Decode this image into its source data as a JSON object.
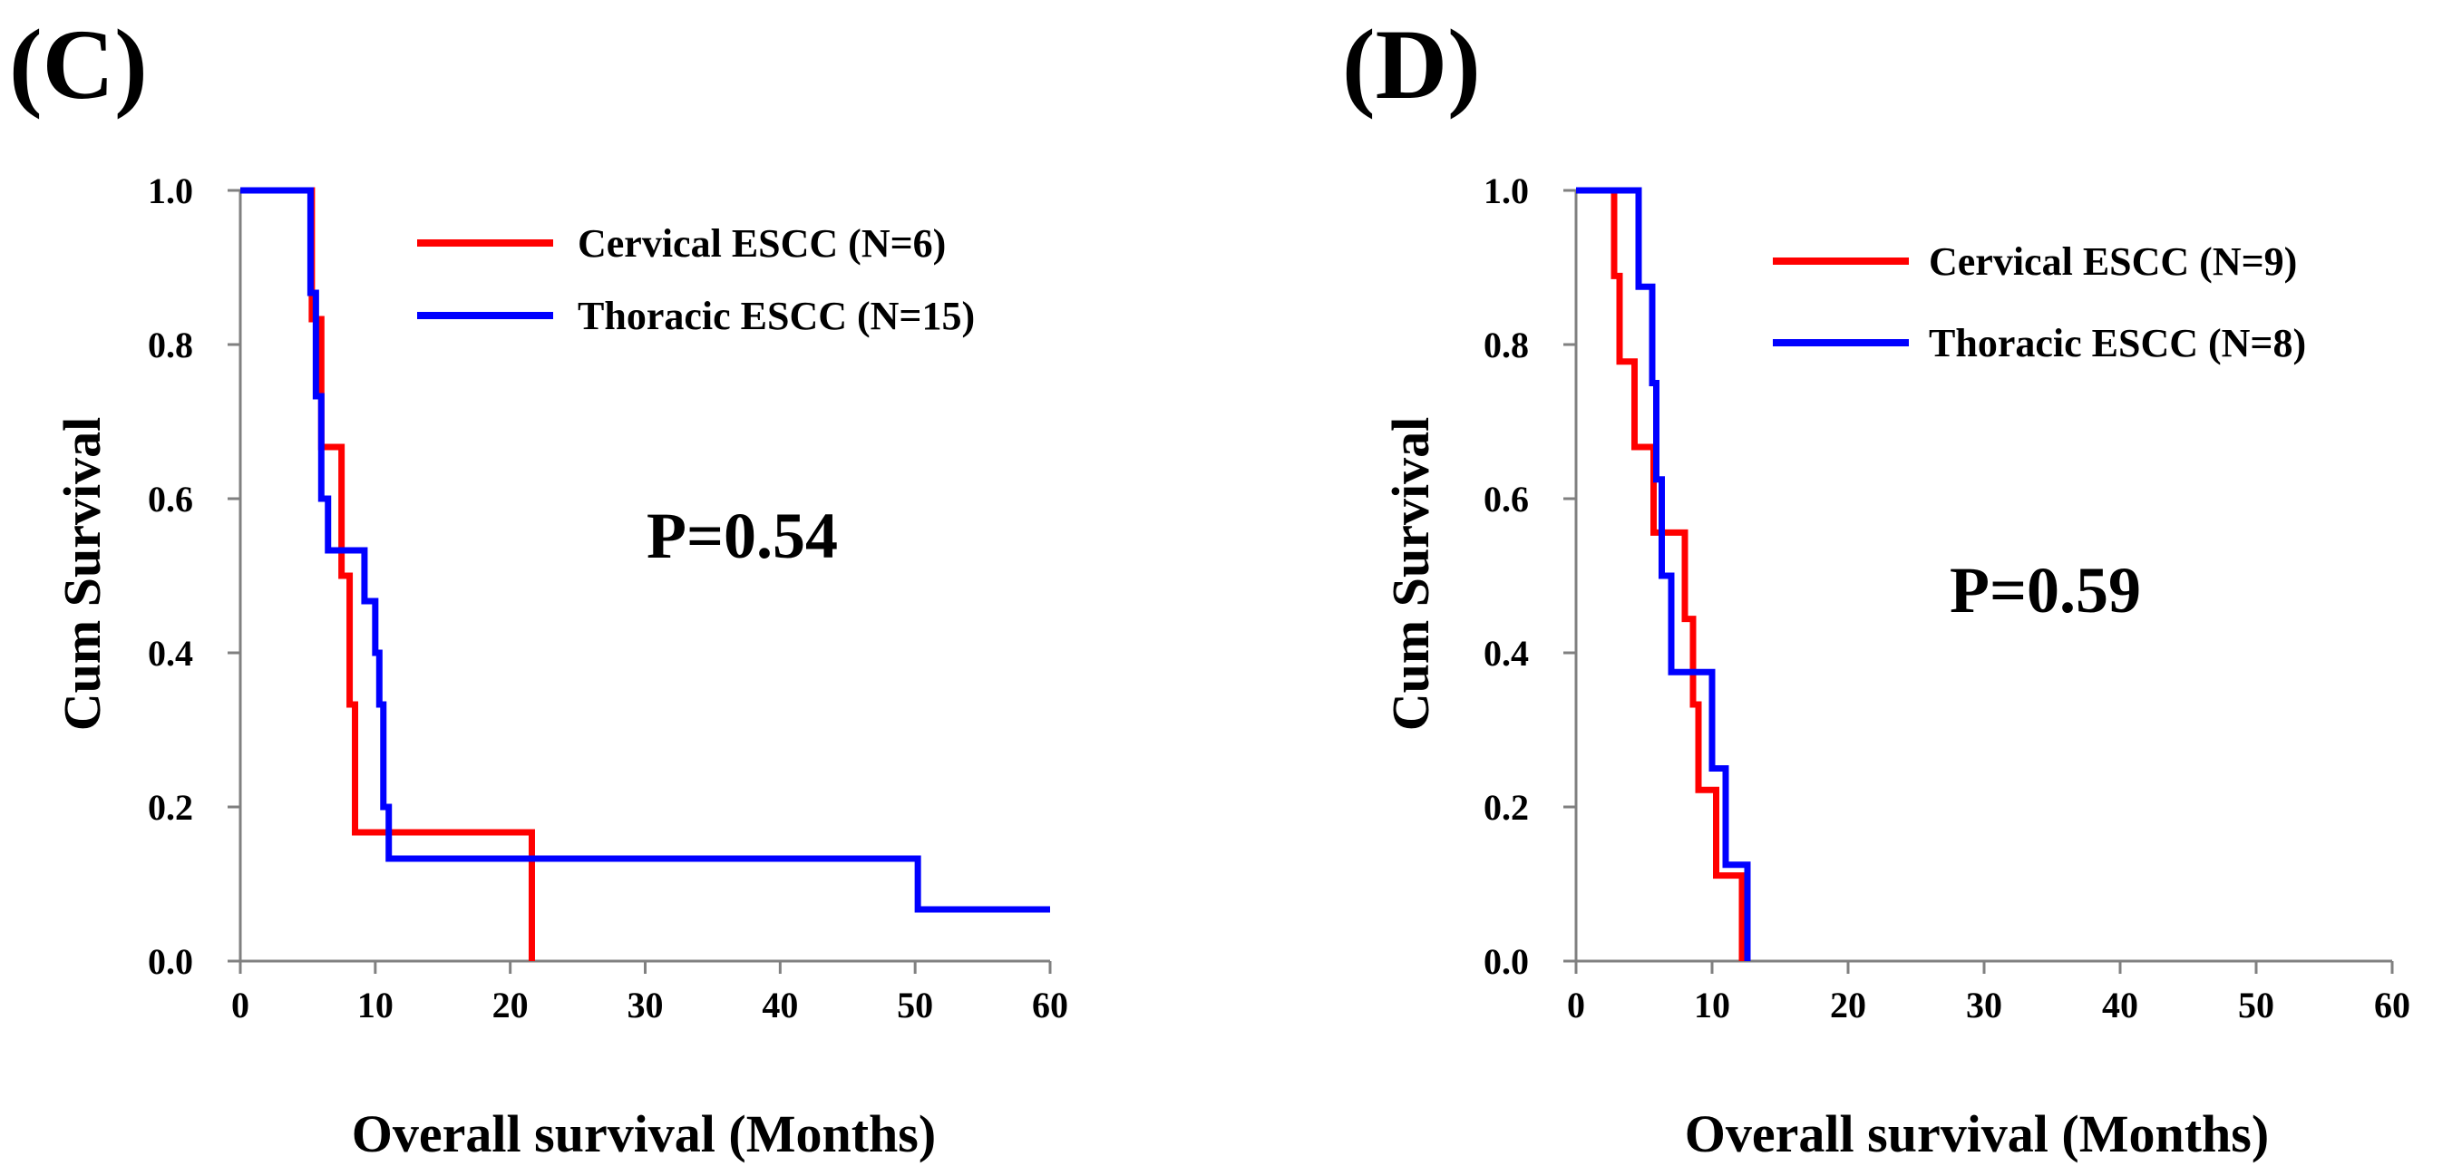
{
  "chart_data": [
    {
      "type": "line",
      "subtype": "kaplan-meier",
      "panel_label": "(C)",
      "xlabel": "Overall survival (Months)",
      "ylabel": "Cum Survival",
      "xlim": [
        0,
        60
      ],
      "ylim": [
        0,
        1.0
      ],
      "xticks": [
        0,
        10,
        20,
        30,
        40,
        50,
        60
      ],
      "xtick_labels": [
        "0",
        "10",
        "20",
        "30",
        "40",
        "50",
        "60"
      ],
      "yticks": [
        0,
        0.2,
        0.4,
        0.6,
        0.8,
        1.0
      ],
      "ytick_labels": [
        "0.0",
        "0.2",
        "0.4",
        "0.6",
        "0.8",
        "1.0"
      ],
      "annotation": "P=0.54",
      "legend_position": "top-right",
      "series": [
        {
          "name": "Cervical ESCC (N=6)",
          "color": "#ff0000",
          "steps": [
            [
              0,
              1.0
            ],
            [
              5.3,
              0.833
            ],
            [
              6.0,
              0.667
            ],
            [
              7.5,
              0.5
            ],
            [
              8.1,
              0.333
            ],
            [
              8.5,
              0.167
            ],
            [
              21.6,
              0.0
            ]
          ]
        },
        {
          "name": "Thoracic ESCC (N=15)",
          "color": "#0000ff",
          "steps": [
            [
              0,
              1.0
            ],
            [
              5.2,
              0.867
            ],
            [
              5.6,
              0.733
            ],
            [
              6.0,
              0.6
            ],
            [
              6.5,
              0.533
            ],
            [
              9.2,
              0.467
            ],
            [
              10.0,
              0.4
            ],
            [
              10.3,
              0.333
            ],
            [
              10.6,
              0.2
            ],
            [
              11.0,
              0.133
            ],
            [
              50.2,
              0.067
            ]
          ],
          "x_end": 60
        }
      ]
    },
    {
      "type": "line",
      "subtype": "kaplan-meier",
      "panel_label": "(D)",
      "xlabel": "Overall survival (Months)",
      "ylabel": "Cum Survival",
      "xlim": [
        0,
        60
      ],
      "ylim": [
        0,
        1.0
      ],
      "xticks": [
        0,
        10,
        20,
        30,
        40,
        50,
        60
      ],
      "xtick_labels": [
        "0",
        "10",
        "20",
        "30",
        "40",
        "50",
        "60"
      ],
      "yticks": [
        0,
        0.2,
        0.4,
        0.6,
        0.8,
        1.0
      ],
      "ytick_labels": [
        "0.0",
        "0.2",
        "0.4",
        "0.6",
        "0.8",
        "1.0"
      ],
      "annotation": "P=0.59",
      "legend_position": "top-right",
      "series": [
        {
          "name": "Cervical ESCC (N=9)",
          "color": "#ff0000",
          "steps": [
            [
              0,
              1.0
            ],
            [
              2.8,
              0.889
            ],
            [
              3.2,
              0.778
            ],
            [
              4.3,
              0.667
            ],
            [
              5.7,
              0.556
            ],
            [
              8.0,
              0.444
            ],
            [
              8.6,
              0.333
            ],
            [
              9.0,
              0.222
            ],
            [
              10.3,
              0.111
            ],
            [
              12.2,
              0.0
            ]
          ]
        },
        {
          "name": "Thoracic ESCC (N=8)",
          "color": "#0000ff",
          "steps": [
            [
              0,
              1.0
            ],
            [
              4.6,
              0.875
            ],
            [
              5.6,
              0.75
            ],
            [
              5.9,
              0.625
            ],
            [
              6.3,
              0.5
            ],
            [
              7.0,
              0.375
            ],
            [
              10.0,
              0.25
            ],
            [
              11.0,
              0.125
            ],
            [
              12.6,
              0.0
            ]
          ]
        }
      ]
    }
  ]
}
